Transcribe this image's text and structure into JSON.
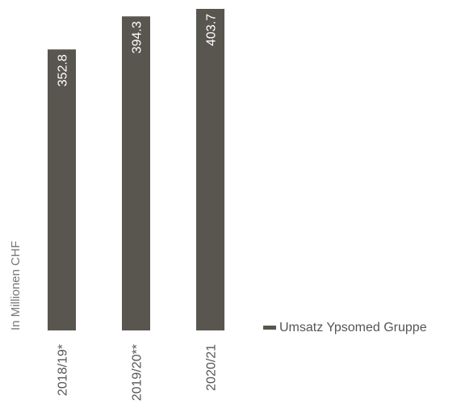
{
  "chart_data": {
    "type": "bar",
    "ylabel": "In Millionen CHF",
    "categories": [
      "2018/19*",
      "2019/20**",
      "2020/21"
    ],
    "series": [
      {
        "name": "Umsatz Ypsomed Gruppe",
        "values": [
          352.8,
          394.3,
          403.7
        ]
      }
    ],
    "value_labels": [
      "352.8",
      "394.3",
      "403.7"
    ],
    "ylim": [
      0,
      403.7
    ],
    "grid": false,
    "legend_position": "right",
    "colors": {
      "bar": "#58564e",
      "value_label": "#ffffff",
      "text": "#555555",
      "axis_label": "#777777"
    }
  }
}
